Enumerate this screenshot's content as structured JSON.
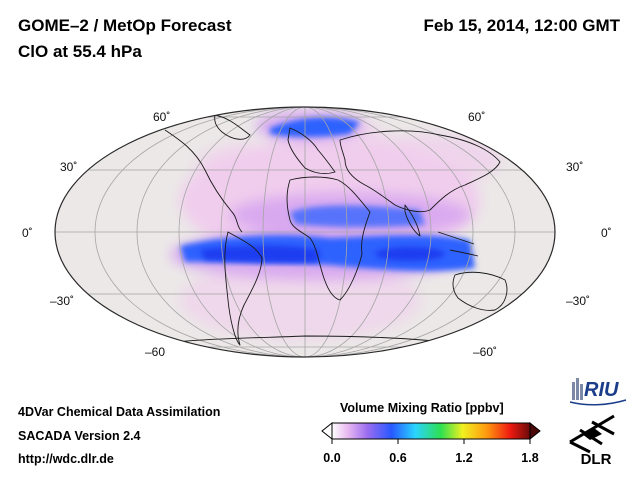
{
  "header": {
    "title_line1": "GOME–2 / MetOp Forecast",
    "title_line2": "ClO at 55.4 hPa",
    "date": "Feb 15, 2014, 12:00 GMT"
  },
  "map": {
    "projection": "Hammer-Aitoff global",
    "lat_labels": {
      "l60n": "60˚",
      "r60n": "60˚",
      "l30n": "30˚",
      "r30n": "30˚",
      "l0": "0˚",
      "r0": "0˚",
      "l30s": "–30˚",
      "r30s": "–30˚",
      "l60s": "–60",
      "r60s": "–60˚"
    },
    "colors": {
      "ocean": "#ece8e8",
      "pink": "#f1c8ee",
      "violet": "#d7a6f0",
      "blue": "#2d62ff",
      "deep_blue": "#1c3df0",
      "grid": "#a5a5a5",
      "coast": "#1a1a1a"
    }
  },
  "footer": {
    "line1": "4DVar Chemical Data Assimilation",
    "line2": "SACADA Version 2.4",
    "line3": "http://wdc.dlr.de"
  },
  "colorbar": {
    "title": "Volume Mixing Ratio [ppbv]",
    "ticks": [
      "0.0",
      "0.6",
      "1.2",
      "1.8"
    ],
    "min": 0.0,
    "max": 1.8
  },
  "logos": {
    "riu": "RIU",
    "dlr": "DLR"
  }
}
